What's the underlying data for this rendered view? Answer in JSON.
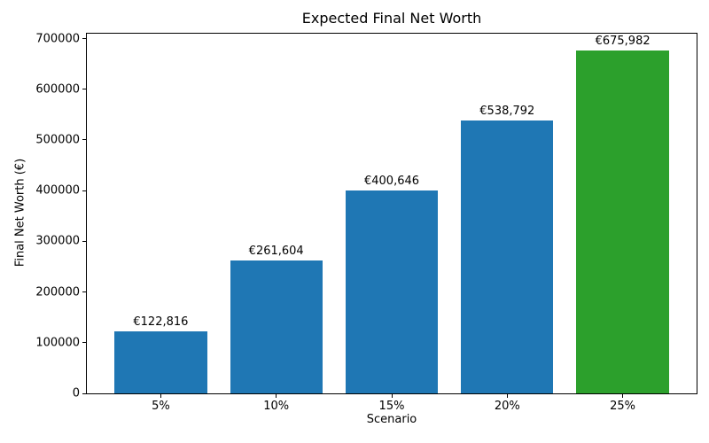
{
  "chart_data": {
    "type": "bar",
    "title": "Expected Final Net Worth",
    "xlabel": "Scenario",
    "ylabel": "Final Net Worth (€)",
    "categories": [
      "5%",
      "10%",
      "15%",
      "20%",
      "25%"
    ],
    "values": [
      122816,
      261604,
      400646,
      538792,
      675982
    ],
    "value_labels": [
      "€122,816",
      "€261,604",
      "€400,646",
      "€538,792",
      "€675,982"
    ],
    "bar_colors": [
      "#1f77b4",
      "#1f77b4",
      "#1f77b4",
      "#1f77b4",
      "#2ca02c"
    ],
    "yticks": [
      0,
      100000,
      200000,
      300000,
      400000,
      500000,
      600000,
      700000
    ],
    "ylim": [
      0,
      709781
    ],
    "bar_width_fraction": 0.8,
    "x_margin_units": 0.24,
    "grid": false,
    "legend_position": "none",
    "background_color": "#ffffff",
    "spine_color": "#000000"
  }
}
